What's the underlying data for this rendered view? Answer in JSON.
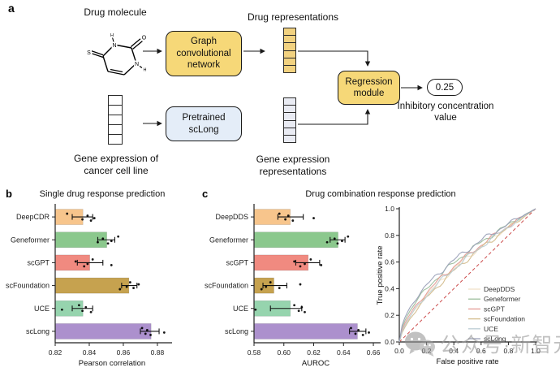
{
  "figure": {
    "panel_a": {
      "label": "a",
      "drug_molecule_label": "Drug molecule",
      "drug_representations_label": "Drug representations",
      "gcn_label": "Graph convolutional network",
      "pretrained_label": "Pretrained scLong",
      "regression_label": "Regression module",
      "output_value": "0.25",
      "output_caption": "Inhibitory concentration value",
      "gene_input_label": "Gene expression of cancer cell line",
      "gene_representations_label": "Gene expression representations",
      "molecule": {
        "atom_labels": {
          "top_h": "H",
          "top_n": "N",
          "carbonyl_o": "O",
          "right_n": "N",
          "right_h": "H",
          "left_s": "S"
        }
      },
      "drug_vector_cells": 6,
      "gene_input_cells": 5,
      "gene_vector_cells": 6,
      "colors": {
        "module_yellow": "#F6D878",
        "module_blue": "#E4EDF8",
        "drug_cell": "#F2D280",
        "gene_cell": "#E9EBF3",
        "input_cell": "#FFFFFF"
      }
    },
    "panel_b_label": "b",
    "panel_c_label": "c"
  },
  "chart_data": [
    {
      "id": "single_drug_bar",
      "type": "bar",
      "orientation": "horizontal",
      "title": "Single drug response prediction",
      "xlabel": "Pearson correlation",
      "xlim": [
        0.82,
        0.8867
      ],
      "xticks": [
        0.82,
        0.84,
        0.86,
        0.88
      ],
      "categories": [
        "DeepCDR",
        "Geneformer",
        "scGPT",
        "scFoundation",
        "UCE",
        "scLong"
      ],
      "values": [
        0.836,
        0.85,
        0.84,
        0.863,
        0.836,
        0.876
      ],
      "errors": [
        [
          0.83,
          0.842
        ],
        [
          0.845,
          0.855
        ],
        [
          0.833,
          0.848
        ],
        [
          0.859,
          0.868
        ],
        [
          0.83,
          0.842
        ],
        [
          0.87,
          0.881
        ]
      ],
      "points": [
        [
          0.827,
          0.836,
          0.839,
          0.841,
          0.843
        ],
        [
          0.845,
          0.848,
          0.851,
          0.853,
          0.857
        ],
        [
          0.832,
          0.837,
          0.839,
          0.842,
          0.853
        ],
        [
          0.858,
          0.862,
          0.864,
          0.866,
          0.869
        ],
        [
          0.824,
          0.834,
          0.836,
          0.838,
          0.841
        ],
        [
          0.871,
          0.873,
          0.874,
          0.876,
          0.884
        ]
      ],
      "colors": [
        "#F7C58C",
        "#8BC88D",
        "#F08A80",
        "#C6A24F",
        "#96D4AE",
        "#AC90CD"
      ]
    },
    {
      "id": "drug_combo_bar",
      "type": "bar",
      "orientation": "horizontal",
      "title": "Drug combination response prediction",
      "xlabel": "AUROC",
      "xlim": [
        0.58,
        0.6627
      ],
      "xticks": [
        0.58,
        0.6,
        0.62,
        0.64,
        0.66
      ],
      "categories": [
        "DeepDDS",
        "Geneformer",
        "scGPT",
        "scFoundation",
        "UCE",
        "scLong"
      ],
      "values": [
        0.604,
        0.636,
        0.616,
        0.593,
        0.604,
        0.649
      ],
      "errors": [
        [
          0.596,
          0.613
        ],
        [
          0.631,
          0.641
        ],
        [
          0.608,
          0.624
        ],
        [
          0.586,
          0.602
        ],
        [
          0.591,
          0.612
        ],
        [
          0.644,
          0.655
        ]
      ],
      "points": [
        [
          0.597,
          0.601,
          0.603,
          0.606,
          0.62
        ],
        [
          0.629,
          0.634,
          0.636,
          0.639,
          0.643
        ],
        [
          0.607,
          0.611,
          0.614,
          0.618,
          0.625
        ],
        [
          0.585,
          0.588,
          0.591,
          0.597,
          0.611
        ],
        [
          0.581,
          0.607,
          0.61,
          0.612,
          0.614
        ],
        [
          0.645,
          0.648,
          0.65,
          0.653,
          0.657
        ]
      ],
      "colors": [
        "#F7C58C",
        "#8BC88D",
        "#F08A80",
        "#C6A24F",
        "#96D4AE",
        "#AC90CD"
      ]
    },
    {
      "id": "drug_combo_roc",
      "type": "line",
      "xlabel": "False positive rate",
      "ylabel": "True positive rate",
      "xlim": [
        0,
        1
      ],
      "ylim": [
        0,
        1
      ],
      "xticks": [
        0,
        0.2,
        0.4,
        0.6,
        0.8,
        1.0
      ],
      "yticks": [
        0,
        0.2,
        0.4,
        0.6,
        0.8,
        1.0
      ],
      "diagonal": {
        "style": "dashed",
        "color": "#CC4C4C"
      },
      "legend_position": "lower right",
      "series": [
        {
          "name": "DeepDDS",
          "color": "#F2E2C8",
          "auc": 0.604
        },
        {
          "name": "Geneformer",
          "color": "#9DBE9D",
          "auc": 0.637
        },
        {
          "name": "scGPT",
          "color": "#E59C96",
          "auc": 0.617
        },
        {
          "name": "scFoundation",
          "color": "#D3BC8C",
          "auc": 0.593
        },
        {
          "name": "UCE",
          "color": "#BCCDD4",
          "auc": 0.604
        },
        {
          "name": "scLong",
          "color": "#9AA0B8",
          "auc": 0.652
        }
      ]
    }
  ],
  "watermark": {
    "icon": "wechat-icon",
    "text": "公众号·新智元"
  }
}
